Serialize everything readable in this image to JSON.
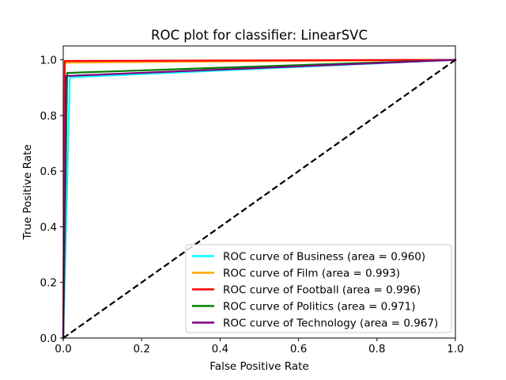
{
  "chart_data": {
    "type": "line",
    "title": "ROC plot for classifier: LinearSVC",
    "xlabel": "False Positive Rate",
    "ylabel": "True Positive Rate",
    "xlim": [
      0.0,
      1.0
    ],
    "ylim": [
      0.0,
      1.05
    ],
    "xticks": [
      0.0,
      0.2,
      0.4,
      0.6,
      0.8,
      1.0
    ],
    "xtick_labels": [
      "0.0",
      "0.2",
      "0.4",
      "0.6",
      "0.8",
      "1.0"
    ],
    "yticks": [
      0.0,
      0.2,
      0.4,
      0.6,
      0.8,
      1.0
    ],
    "ytick_labels": [
      "0.0",
      "0.2",
      "0.4",
      "0.6",
      "0.8",
      "1.0"
    ],
    "grid": false,
    "legend_position": "lower-right",
    "series": [
      {
        "name": "ROC curve of Business (area = 0.960)",
        "color": "#00ffff",
        "x": [
          0.0,
          0.017,
          1.0
        ],
        "y": [
          0.0,
          0.937,
          1.0
        ]
      },
      {
        "name": "ROC curve of Film (area = 0.993)",
        "color": "#ffa500",
        "x": [
          0.0,
          0.004,
          1.0
        ],
        "y": [
          0.0,
          0.99,
          1.0
        ]
      },
      {
        "name": "ROC curve of Football (area = 0.996)",
        "color": "#ff0000",
        "x": [
          0.0,
          0.004,
          1.0
        ],
        "y": [
          0.0,
          0.996,
          1.0
        ]
      },
      {
        "name": "ROC curve of Politics (area = 0.971)",
        "color": "#008000",
        "x": [
          0.0,
          0.01,
          1.0
        ],
        "y": [
          0.0,
          0.953,
          1.0
        ]
      },
      {
        "name": "ROC curve of Technology (area = 0.967)",
        "color": "#800080",
        "x": [
          0.0,
          0.007,
          1.0
        ],
        "y": [
          0.0,
          0.942,
          1.0
        ]
      }
    ],
    "reference_line": {
      "x": [
        0.0,
        1.0
      ],
      "y": [
        0.0,
        1.0
      ],
      "color": "#000000",
      "style": "dashed"
    }
  }
}
